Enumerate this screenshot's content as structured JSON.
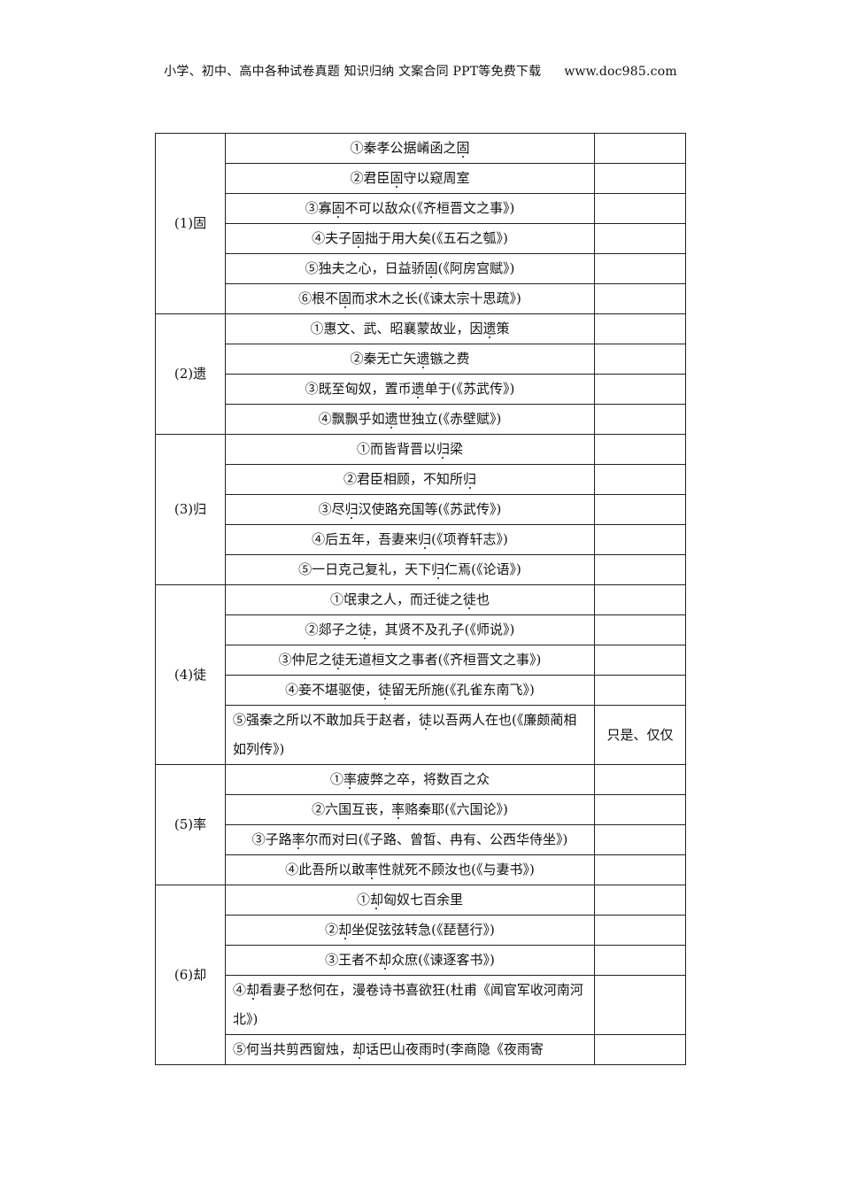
{
  "header": {
    "text": "小学、初中、高中各种试卷真题  知识归纳  文案合同  PPT等免费下载",
    "url": "www.doc985.com"
  },
  "groups": [
    {
      "word": "(1)固",
      "mark": "固",
      "items": [
        {
          "text": "①秦孝公据崤函之固",
          "meaning": ""
        },
        {
          "text": "②君臣固守以窥周室",
          "meaning": ""
        },
        {
          "text": "③寡固不可以敌众(《齐桓晋文之事》)",
          "meaning": ""
        },
        {
          "text": "④夫子固拙于用大矣(《五石之瓠》)",
          "meaning": ""
        },
        {
          "text": "⑤独夫之心，日益骄固(《阿房宫赋》)",
          "meaning": ""
        },
        {
          "text": "⑥根不固而求木之长(《谏太宗十思疏》)",
          "meaning": ""
        }
      ]
    },
    {
      "word": "(2)遗",
      "mark": "遗",
      "items": [
        {
          "text": "①惠文、武、昭襄蒙故业，因遗策",
          "meaning": ""
        },
        {
          "text": "②秦无亡矢遗镞之费",
          "meaning": ""
        },
        {
          "text": "③既至匈奴，置币遗单于(《苏武传》)",
          "meaning": ""
        },
        {
          "text": "④飘飘乎如遗世独立(《赤壁赋》)",
          "meaning": ""
        }
      ]
    },
    {
      "word": "(3)归",
      "mark": "归",
      "items": [
        {
          "text": "①而皆背晋以归梁",
          "meaning": ""
        },
        {
          "text": "②君臣相顾，不知所归",
          "meaning": ""
        },
        {
          "text": "③尽归汉使路充国等(《苏武传》)",
          "meaning": ""
        },
        {
          "text": "④后五年，吾妻来归(《项脊轩志》)",
          "meaning": ""
        },
        {
          "text": "⑤一日克己复礼，天下归仁焉(《论语》)",
          "meaning": ""
        }
      ]
    },
    {
      "word": "(4)徒",
      "mark": "徒",
      "items": [
        {
          "text": "①氓隶之人，而迁徙之徒也",
          "meaning": ""
        },
        {
          "text": "②郯子之徒，其贤不及孔子(《师说》)",
          "meaning": ""
        },
        {
          "text": "③仲尼之徒无道桓文之事者(《齐桓晋文之事》)",
          "meaning": ""
        },
        {
          "text": "④妾不堪驱使，徒留无所施(《孔雀东南飞》)",
          "meaning": ""
        },
        {
          "text": "⑤强秦之所以不敢加兵于赵者，徒以吾两人在也(《廉颇蔺相如列传》)",
          "meaning": "只是、仅仅",
          "wrap": true
        }
      ]
    },
    {
      "word": "(5)率",
      "mark": "率",
      "items": [
        {
          "text": "①率疲弊之卒，将数百之众",
          "meaning": ""
        },
        {
          "text": "②六国互丧，率赂秦耶(《六国论》)",
          "meaning": ""
        },
        {
          "text": "③子路率尔而对曰(《子路、曾皙、冉有、公西华侍坐》)",
          "meaning": "",
          "wrap": true,
          "center": true
        },
        {
          "text": "④此吾所以敢率性就死不顾汝也(《与妻书》)",
          "meaning": ""
        }
      ]
    },
    {
      "word": "(6)却",
      "mark": "却",
      "items": [
        {
          "text": "①却匈奴七百余里",
          "meaning": ""
        },
        {
          "text": "②却坐促弦弦转急(《琵琶行》)",
          "meaning": ""
        },
        {
          "text": "③王者不却众庶(《谏逐客书》)",
          "meaning": ""
        },
        {
          "text": "④却看妻子愁何在，漫卷诗书喜欲狂(杜甫《闻官军收河南河北》)",
          "meaning": "",
          "wrap": true
        },
        {
          "text": "⑤何当共剪西窗烛，却话巴山夜雨时(李商隐《夜雨寄",
          "meaning": "",
          "wrap": true
        }
      ]
    }
  ]
}
